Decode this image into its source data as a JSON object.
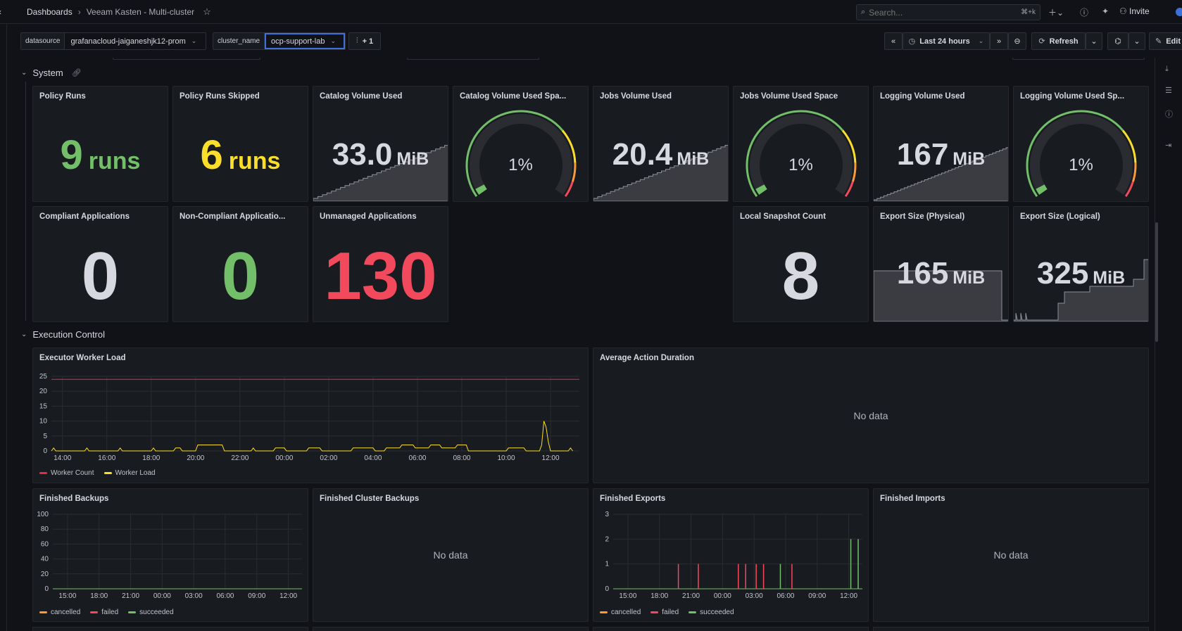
{
  "breadcrumb": {
    "root": "Dashboards",
    "current": "Veeam Kasten - Multi-cluster"
  },
  "topbar": {
    "search_placeholder": "Search...",
    "search_shortcut": "⌘+k",
    "invite": "Invite"
  },
  "variables": [
    {
      "label": "datasource",
      "value": "grafanacloud-jaiganeshjk12-prom"
    },
    {
      "label": "cluster_name",
      "value": "ocp-support-lab"
    }
  ],
  "more_vars": "+ 1",
  "toolbar": {
    "time_range": "Last 24 hours",
    "refresh": "Refresh",
    "edit": "Edit"
  },
  "rows": {
    "system": "System",
    "execution": "Execution Control"
  },
  "colors": {
    "green": "#73bf69",
    "yellow": "#fade2a",
    "red": "#f2495c",
    "text": "#ccccdc"
  },
  "stats": {
    "policy_runs": {
      "title": "Policy Runs",
      "value": "9",
      "unit": "runs"
    },
    "policy_runs_skipped": {
      "title": "Policy Runs Skipped",
      "value": "6",
      "unit": "runs"
    },
    "catalog_volume_used": {
      "title": "Catalog Volume Used",
      "value": "33.0",
      "unit": "MiB"
    },
    "catalog_volume_space": {
      "title": "Catalog Volume Used Spa...",
      "value": "1%",
      "percent": 1
    },
    "jobs_volume_used": {
      "title": "Jobs Volume Used",
      "value": "20.4",
      "unit": "MiB"
    },
    "jobs_volume_space": {
      "title": "Jobs Volume Used Space",
      "value": "1%",
      "percent": 1
    },
    "logging_volume_used": {
      "title": "Logging Volume Used",
      "value": "167",
      "unit": "MiB"
    },
    "logging_volume_space": {
      "title": "Logging Volume Used Sp...",
      "value": "1%",
      "percent": 1
    },
    "compliant_apps": {
      "title": "Compliant Applications",
      "value": "0"
    },
    "noncompliant_apps": {
      "title": "Non-Compliant Applicatio...",
      "value": "0"
    },
    "unmanaged_apps": {
      "title": "Unmanaged Applications",
      "value": "130"
    },
    "local_snapshot_count": {
      "title": "Local Snapshot Count",
      "value": "8"
    },
    "export_physical": {
      "title": "Export Size (Physical)",
      "value": "165",
      "unit": "MiB"
    },
    "export_logical": {
      "title": "Export Size (Logical)",
      "value": "325",
      "unit": "MiB"
    }
  },
  "panels": {
    "avg_action_duration": {
      "title": "Average Action Duration",
      "nodata": "No data"
    },
    "finished_cluster_backups": {
      "title": "Finished Cluster Backups",
      "nodata": "No data"
    },
    "finished_imports": {
      "title": "Finished Imports",
      "nodata": "No data"
    }
  },
  "chart_data": [
    {
      "type": "line",
      "title": "Executor Worker Load",
      "x_ticks": [
        "14:00",
        "16:00",
        "18:00",
        "20:00",
        "22:00",
        "00:00",
        "02:00",
        "04:00",
        "06:00",
        "08:00",
        "10:00",
        "12:00"
      ],
      "ylim": [
        0,
        25
      ],
      "y_ticks": [
        0,
        5,
        10,
        15,
        20,
        25
      ],
      "x_range_hours": [
        13.5,
        37.3
      ],
      "series": [
        {
          "name": "Worker Count",
          "color": "#e02f44",
          "points": [
            [
              13.5,
              24
            ],
            [
              37.3,
              24
            ]
          ]
        },
        {
          "name": "Worker Load",
          "color": "#fade2a",
          "points": [
            [
              13.5,
              0
            ],
            [
              13.6,
              1
            ],
            [
              13.7,
              0
            ],
            [
              15.0,
              0
            ],
            [
              15.1,
              1
            ],
            [
              15.2,
              0
            ],
            [
              16.5,
              0
            ],
            [
              16.6,
              1
            ],
            [
              16.7,
              0
            ],
            [
              18.0,
              0
            ],
            [
              18.1,
              1
            ],
            [
              18.2,
              0
            ],
            [
              19.0,
              0
            ],
            [
              19.1,
              1
            ],
            [
              19.3,
              1
            ],
            [
              19.4,
              0
            ],
            [
              20.0,
              0
            ],
            [
              20.1,
              2
            ],
            [
              21.2,
              2
            ],
            [
              21.3,
              0
            ],
            [
              22.5,
              0
            ],
            [
              22.6,
              1
            ],
            [
              22.7,
              0
            ],
            [
              23.5,
              0
            ],
            [
              23.6,
              1
            ],
            [
              24.0,
              1
            ],
            [
              24.1,
              0
            ],
            [
              25.0,
              0
            ],
            [
              25.1,
              1
            ],
            [
              25.6,
              1
            ],
            [
              25.7,
              0
            ],
            [
              27.0,
              0
            ],
            [
              27.1,
              1
            ],
            [
              28.0,
              1
            ],
            [
              28.1,
              0
            ],
            [
              28.5,
              0
            ],
            [
              28.6,
              1
            ],
            [
              29.2,
              1
            ],
            [
              29.3,
              2
            ],
            [
              29.8,
              2
            ],
            [
              29.9,
              1
            ],
            [
              30.5,
              1
            ],
            [
              30.6,
              2
            ],
            [
              31.0,
              2
            ],
            [
              31.1,
              1
            ],
            [
              31.7,
              1
            ],
            [
              31.8,
              2
            ],
            [
              32.2,
              2
            ],
            [
              32.3,
              0
            ],
            [
              34.0,
              0
            ],
            [
              34.1,
              1
            ],
            [
              34.8,
              1
            ],
            [
              34.9,
              0
            ],
            [
              35.5,
              0
            ],
            [
              35.6,
              2
            ],
            [
              35.7,
              10
            ],
            [
              35.8,
              8
            ],
            [
              35.9,
              3
            ],
            [
              36.0,
              0
            ],
            [
              36.8,
              0
            ],
            [
              36.9,
              1
            ],
            [
              37.0,
              0
            ]
          ]
        }
      ]
    },
    {
      "type": "bar",
      "title": "Finished Backups",
      "x_ticks": [
        "15:00",
        "18:00",
        "21:00",
        "00:00",
        "03:00",
        "06:00",
        "09:00",
        "12:00"
      ],
      "ylim": [
        0,
        100
      ],
      "y_ticks": [
        0,
        20,
        40,
        60,
        80,
        100
      ],
      "series": [
        {
          "name": "cancelled",
          "color": "#ff9830",
          "values": []
        },
        {
          "name": "failed",
          "color": "#f2495c",
          "values": []
        },
        {
          "name": "succeeded",
          "color": "#73bf69",
          "values": []
        }
      ]
    },
    {
      "type": "bar",
      "title": "Finished Exports",
      "x_ticks": [
        "15:00",
        "18:00",
        "21:00",
        "00:00",
        "03:00",
        "06:00",
        "09:00",
        "12:00"
      ],
      "ylim": [
        0,
        3
      ],
      "y_ticks": [
        0,
        1,
        2,
        3
      ],
      "x_range_hours": [
        13.6,
        37.3
      ],
      "series": [
        {
          "name": "cancelled",
          "color": "#ff9830",
          "points": []
        },
        {
          "name": "failed",
          "color": "#f2495c",
          "points": [
            [
              19.8,
              1
            ],
            [
              21.7,
              1
            ],
            [
              25.5,
              1
            ],
            [
              26.2,
              1
            ],
            [
              27.2,
              1
            ],
            [
              27.9,
              1
            ],
            [
              30.6,
              1
            ]
          ]
        },
        {
          "name": "succeeded",
          "color": "#73bf69",
          "points": [
            [
              29.5,
              1
            ],
            [
              36.2,
              2
            ],
            [
              36.9,
              2
            ]
          ]
        }
      ]
    }
  ]
}
